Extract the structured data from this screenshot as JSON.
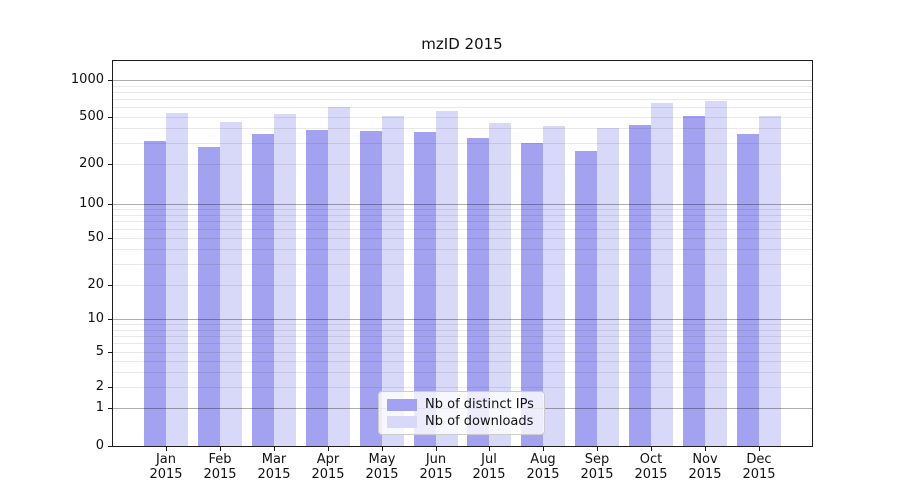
{
  "chart_data": {
    "type": "bar",
    "title": "mzID 2015",
    "categories": [
      "Jan",
      "Feb",
      "Mar",
      "Apr",
      "May",
      "Jun",
      "Jul",
      "Aug",
      "Sep",
      "Oct",
      "Nov",
      "Dec"
    ],
    "year": "2015",
    "series": [
      {
        "name": "Nb of distinct IPs",
        "color": "#a2a2f0",
        "values": [
          315,
          280,
          360,
          385,
          380,
          375,
          330,
          300,
          260,
          430,
          505,
          360
        ]
      },
      {
        "name": "Nb of downloads",
        "color": "#d8d8f8",
        "values": [
          540,
          455,
          530,
          605,
          505,
          555,
          445,
          420,
          400,
          655,
          680,
          505
        ]
      }
    ],
    "xlabel": "",
    "ylabel": "",
    "yscale": "symlog",
    "y_ticks": [
      0,
      1,
      2,
      5,
      10,
      20,
      50,
      100,
      200,
      500,
      1000
    ],
    "ylim": [
      0,
      1400
    ],
    "grid": "major-and-minor horizontal",
    "legend_position": "lower center"
  }
}
